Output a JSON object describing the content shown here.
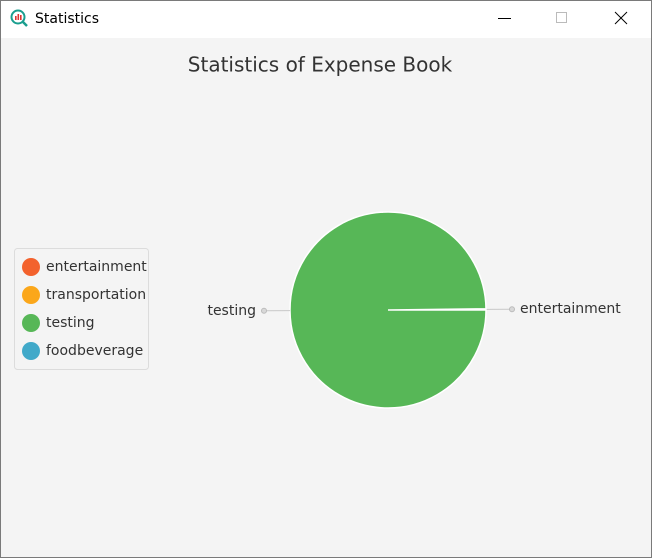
{
  "window": {
    "title": "Statistics"
  },
  "chart_data": {
    "type": "pie",
    "title": "Statistics of Expense Book",
    "categories": [
      "entertainment",
      "transportation",
      "testing",
      "foodbeverage"
    ],
    "values": [
      0.2,
      0,
      99.8,
      0
    ],
    "colors": [
      "#f3622d",
      "#fba71b",
      "#57b757",
      "#41a9c9"
    ],
    "legend": "left"
  }
}
